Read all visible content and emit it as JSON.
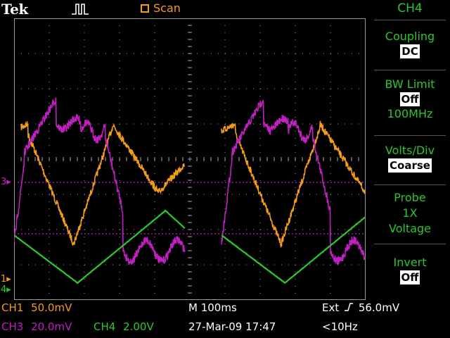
{
  "header": {
    "brand": "Tek",
    "acq_icon": "trigger-pulse-icon",
    "mode_icon": "scan-square-icon",
    "mode_label": "Scan"
  },
  "side_menu": {
    "title": "CH4",
    "items": [
      {
        "label": "Coupling",
        "value": "DC"
      },
      {
        "label": "BW Limit",
        "value": "Off",
        "extra": "100MHz"
      },
      {
        "label": "Volts/Div",
        "value": "Coarse"
      },
      {
        "label": "Probe",
        "line2": "1X",
        "line3": "Voltage"
      },
      {
        "label": "Invert",
        "value": "Off"
      }
    ]
  },
  "markers": {
    "ch3_ref": "3",
    "ch1_ref": "1",
    "ch4_ref": "4"
  },
  "status": {
    "ch1_name": "CH1",
    "ch1_scale": "50.0mV",
    "ch3_name": "CH3",
    "ch3_scale": "20.0mV",
    "ch4_name": "CH4",
    "ch4_scale": "2.00V",
    "timebase": "M 100ms",
    "trigger": "Ext",
    "trigger_level": "56.0mV",
    "datetime": "27-Mar-09 17:47",
    "trigger_freq": "<10Hz"
  },
  "colors": {
    "ch1": "#f39c1a",
    "ch3": "#c21fc2",
    "ch4": "#2ec42e",
    "grid": "#9a9a9a"
  }
}
